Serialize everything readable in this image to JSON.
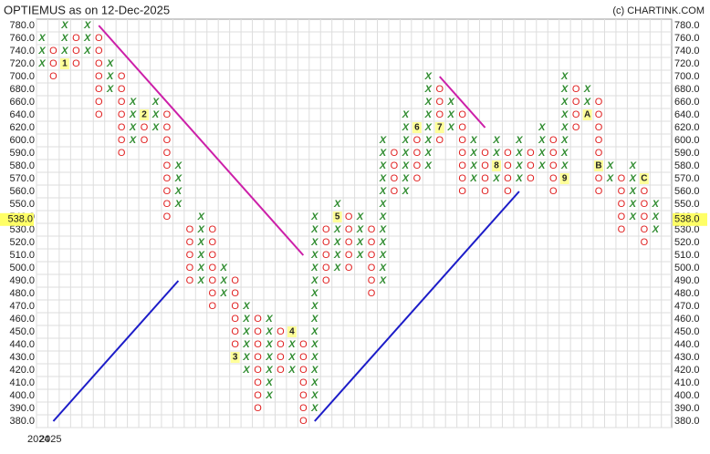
{
  "chart_data": {
    "type": "point-and-figure",
    "title": "OPTIEMUS as on 12-Dec-2025",
    "credit": "(c) CHARTINK.COM",
    "x_labels": [
      "2024",
      "2025"
    ],
    "yticks": [
      {
        "value": 780,
        "label": "780.0"
      },
      {
        "value": 760,
        "label": "760.0"
      },
      {
        "value": 740,
        "label": "740.0"
      },
      {
        "value": 720,
        "label": "720.0"
      },
      {
        "value": 700,
        "label": "700.0"
      },
      {
        "value": 680,
        "label": "680.0"
      },
      {
        "value": 660,
        "label": "660.0"
      },
      {
        "value": 640,
        "label": "640.0"
      },
      {
        "value": 620,
        "label": "620.0"
      },
      {
        "value": 600,
        "label": "600.0"
      },
      {
        "value": 590,
        "label": "590.0"
      },
      {
        "value": 580,
        "label": "580.0"
      },
      {
        "value": 570,
        "label": "570.0"
      },
      {
        "value": 560,
        "label": "560.0"
      },
      {
        "value": 550,
        "label": "550.0"
      },
      {
        "value": 540,
        "label": "540.0"
      },
      {
        "value": 530,
        "label": "530.0"
      },
      {
        "value": 520,
        "label": "520.0"
      },
      {
        "value": 510,
        "label": "510.0"
      },
      {
        "value": 500,
        "label": "500.0"
      },
      {
        "value": 490,
        "label": "490.0"
      },
      {
        "value": 480,
        "label": "480.0"
      },
      {
        "value": 470,
        "label": "470.0"
      },
      {
        "value": 460,
        "label": "460.0"
      },
      {
        "value": 450,
        "label": "450.0"
      },
      {
        "value": 440,
        "label": "440.0"
      },
      {
        "value": 430,
        "label": "430.0"
      },
      {
        "value": 420,
        "label": "420.0"
      },
      {
        "value": 410,
        "label": "410.0"
      },
      {
        "value": 400,
        "label": "400.0"
      },
      {
        "value": 390,
        "label": "390.0"
      },
      {
        "value": 380,
        "label": "380.0"
      }
    ],
    "current": {
      "value": 538,
      "label": "538.0"
    },
    "x_color": "#2e8b2e",
    "o_color": "#e02020",
    "columns": [
      {
        "kind": "X",
        "low": 720,
        "high": 760
      },
      {
        "kind": "O",
        "low": 700,
        "high": 740
      },
      {
        "kind": "X",
        "low": 720,
        "high": 780
      },
      {
        "kind": "O",
        "low": 720,
        "high": 760
      },
      {
        "kind": "X",
        "low": 740,
        "high": 780
      },
      {
        "kind": "O",
        "low": 640,
        "high": 760
      },
      {
        "kind": "X",
        "low": 680,
        "high": 720
      },
      {
        "kind": "O",
        "low": 590,
        "high": 700
      },
      {
        "kind": "X",
        "low": 600,
        "high": 660
      },
      {
        "kind": "O",
        "low": 600,
        "high": 640
      },
      {
        "kind": "X",
        "low": 620,
        "high": 660
      },
      {
        "kind": "O",
        "low": 540,
        "high": 640
      },
      {
        "kind": "X",
        "low": 550,
        "high": 580
      },
      {
        "kind": "O",
        "low": 490,
        "high": 530
      },
      {
        "kind": "X",
        "low": 490,
        "high": 540
      },
      {
        "kind": "O",
        "low": 470,
        "high": 530
      },
      {
        "kind": "X",
        "low": 480,
        "high": 500
      },
      {
        "kind": "O",
        "low": 430,
        "high": 490
      },
      {
        "kind": "X",
        "low": 420,
        "high": 470
      },
      {
        "kind": "O",
        "low": 390,
        "high": 460
      },
      {
        "kind": "X",
        "low": 400,
        "high": 460
      },
      {
        "kind": "O",
        "low": 420,
        "high": 450
      },
      {
        "kind": "X",
        "low": 420,
        "high": 450
      },
      {
        "kind": "O",
        "low": 380,
        "high": 440
      },
      {
        "kind": "X",
        "low": 390,
        "high": 540
      },
      {
        "kind": "O",
        "low": 490,
        "high": 530
      },
      {
        "kind": "X",
        "low": 500,
        "high": 550
      },
      {
        "kind": "O",
        "low": 500,
        "high": 540
      },
      {
        "kind": "X",
        "low": 510,
        "high": 540
      },
      {
        "kind": "O",
        "low": 480,
        "high": 530
      },
      {
        "kind": "X",
        "low": 490,
        "high": 600
      },
      {
        "kind": "O",
        "low": 560,
        "high": 590
      },
      {
        "kind": "X",
        "low": 560,
        "high": 640
      },
      {
        "kind": "O",
        "low": 570,
        "high": 620
      },
      {
        "kind": "X",
        "low": 580,
        "high": 700
      },
      {
        "kind": "O",
        "low": 600,
        "high": 680
      },
      {
        "kind": "X",
        "low": 620,
        "high": 660
      },
      {
        "kind": "O",
        "low": 560,
        "high": 640
      },
      {
        "kind": "X",
        "low": 570,
        "high": 600
      },
      {
        "kind": "O",
        "low": 560,
        "high": 590
      },
      {
        "kind": "X",
        "low": 570,
        "high": 600
      },
      {
        "kind": "O",
        "low": 560,
        "high": 590
      },
      {
        "kind": "X",
        "low": 570,
        "high": 600
      },
      {
        "kind": "O",
        "low": 570,
        "high": 590
      },
      {
        "kind": "X",
        "low": 580,
        "high": 620
      },
      {
        "kind": "O",
        "low": 560,
        "high": 600
      },
      {
        "kind": "X",
        "low": 570,
        "high": 700
      },
      {
        "kind": "O",
        "low": 620,
        "high": 680
      },
      {
        "kind": "X",
        "low": 640,
        "high": 680
      },
      {
        "kind": "O",
        "low": 560,
        "high": 660
      },
      {
        "kind": "X",
        "low": 570,
        "high": 580
      },
      {
        "kind": "O",
        "low": 530,
        "high": 570
      },
      {
        "kind": "X",
        "low": 540,
        "high": 580
      },
      {
        "kind": "O",
        "low": 520,
        "high": 570
      },
      {
        "kind": "X",
        "low": 530,
        "high": 550
      }
    ],
    "markers": [
      {
        "column": 2,
        "price": 720,
        "label": "1"
      },
      {
        "column": 9,
        "price": 640,
        "label": "2"
      },
      {
        "column": 17,
        "price": 430,
        "label": "3"
      },
      {
        "column": 22,
        "price": 450,
        "label": "4"
      },
      {
        "column": 26,
        "price": 540,
        "label": "5"
      },
      {
        "column": 33,
        "price": 620,
        "label": "6"
      },
      {
        "column": 35,
        "price": 620,
        "label": "7"
      },
      {
        "column": 40,
        "price": 580,
        "label": "8"
      },
      {
        "column": 46,
        "price": 570,
        "label": "9"
      },
      {
        "column": 48,
        "price": 640,
        "label": "A"
      },
      {
        "column": 49,
        "price": 580,
        "label": "B"
      },
      {
        "column": 53,
        "price": 570,
        "label": "C"
      }
    ],
    "trendlines": [
      {
        "color": "#cc1fa8",
        "x": [
          5,
          23
        ],
        "y": [
          780,
          510
        ]
      },
      {
        "color": "#cc1fa8",
        "x": [
          35,
          39
        ],
        "y": [
          700,
          620
        ]
      },
      {
        "color": "#1c1cc8",
        "x": [
          1,
          12
        ],
        "y": [
          380,
          490
        ]
      },
      {
        "color": "#1c1cc8",
        "x": [
          24,
          42
        ],
        "y": [
          380,
          560
        ]
      }
    ]
  }
}
